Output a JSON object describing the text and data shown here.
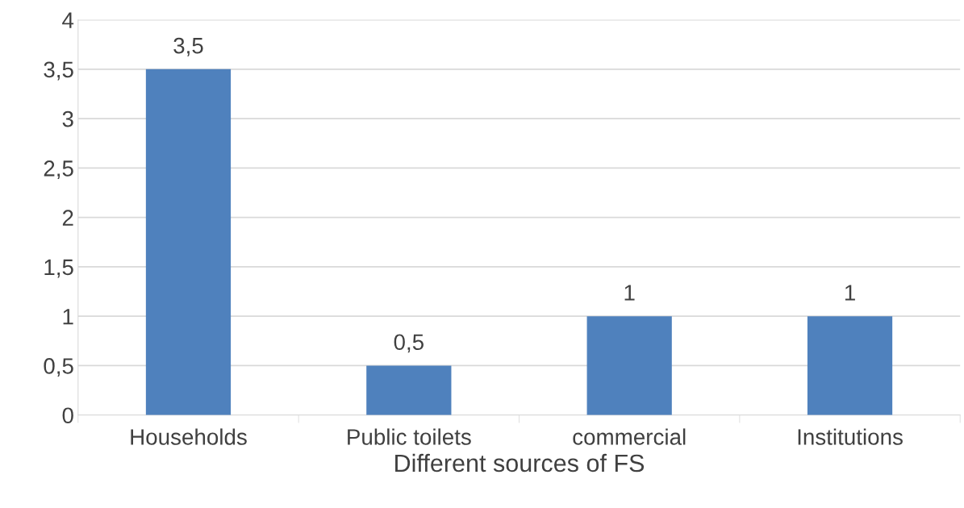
{
  "chart_data": {
    "type": "bar",
    "xlabel": "Different sources of FS",
    "categories": [
      "Households",
      "Public toilets",
      "commercial",
      "Institutions"
    ],
    "values": [
      3.5,
      0.5,
      1,
      1
    ],
    "color": "#4f81bd",
    "value_labels": [
      "3,5",
      "0,5",
      "1",
      "1"
    ],
    "ylim": [
      0,
      4
    ],
    "yticks": [
      0,
      {
        "value": 0.5,
        "label": "0,5"
      },
      1,
      {
        "value": 1.5,
        "label": "1,5"
      },
      2,
      {
        "value": 2.5,
        "label": "2,5"
      },
      3,
      {
        "value": 3.5,
        "label": "3,5"
      },
      4
    ],
    "grid": "y"
  }
}
